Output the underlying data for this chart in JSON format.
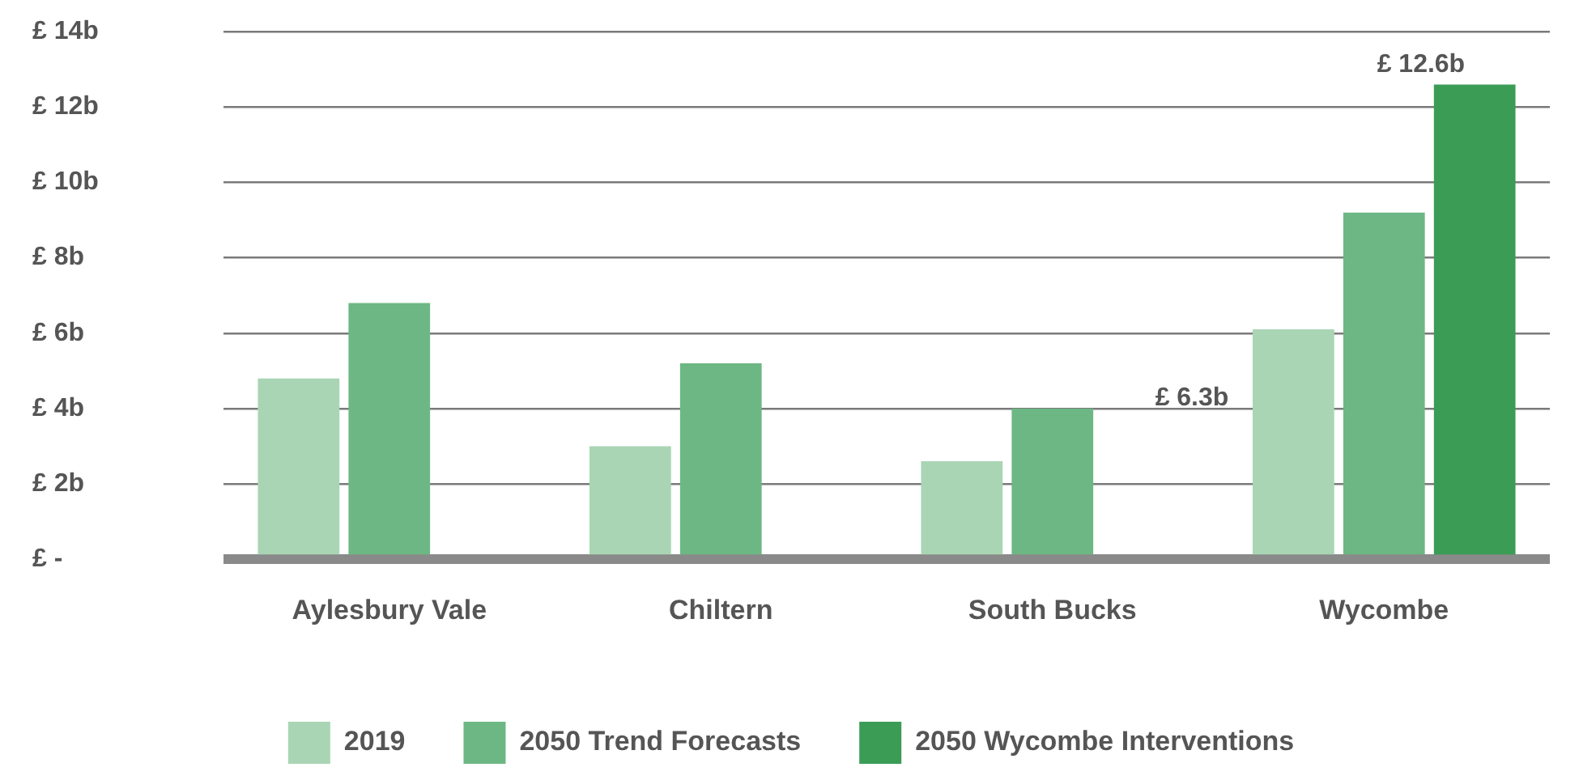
{
  "chart_data": {
    "type": "bar",
    "categories": [
      "Aylesbury Vale",
      "Chiltern",
      "South Bucks",
      "Wycombe"
    ],
    "series": [
      {
        "name": "2019",
        "color": "#a9d5b4",
        "values": [
          4.8,
          3.0,
          2.6,
          6.1
        ]
      },
      {
        "name": "2050 Trend Forecasts",
        "color": "#6db784",
        "values": [
          6.8,
          5.2,
          4.0,
          9.2
        ]
      },
      {
        "name": "2050 Wycombe Interventions",
        "color": "#3b9c56",
        "values": [
          null,
          null,
          null,
          12.6
        ],
        "value_labels": [
          null,
          null,
          null,
          "£ 12.6b"
        ]
      }
    ],
    "ylim": [
      0,
      14
    ],
    "yticks": [
      {
        "value": 0,
        "label": "£ -"
      },
      {
        "value": 2,
        "label": "£ 2b"
      },
      {
        "value": 4,
        "label": "£ 4b"
      },
      {
        "value": 6,
        "label": "£ 6b"
      },
      {
        "value": 8,
        "label": "£ 8b"
      },
      {
        "value": 10,
        "label": "£ 10b"
      },
      {
        "value": 12,
        "label": "£ 12b"
      },
      {
        "value": 14,
        "label": "£ 14b"
      }
    ],
    "annotations": [
      "£ 6.3b"
    ],
    "grid": "y",
    "legend": "bottom"
  }
}
